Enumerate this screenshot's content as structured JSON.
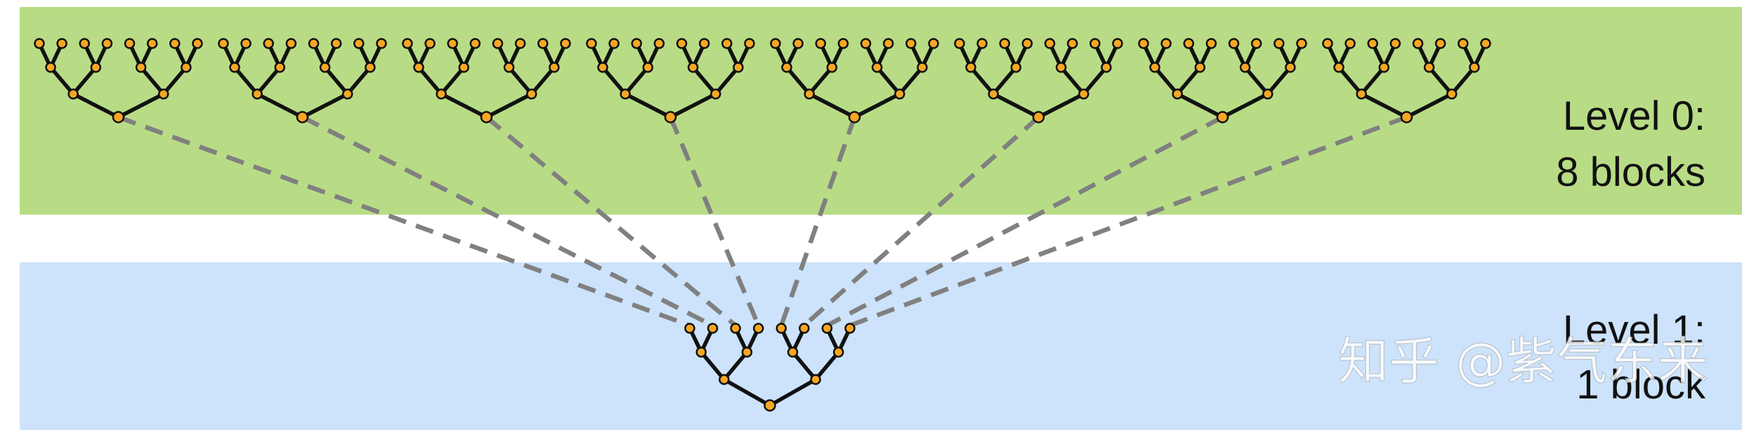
{
  "level0": {
    "label_line1": "Level 0:",
    "label_line2": "8 blocks",
    "block_count": 8,
    "background": "#b8dc86"
  },
  "level1": {
    "label_line1": "Level 1:",
    "label_line2": "1 block",
    "block_count": 1,
    "background": "#cce3fb"
  },
  "tree": {
    "leaves_per_block": 8,
    "edge_color": "#111111",
    "node_color": "#f6a623",
    "node_outline": "#111111"
  },
  "connector": {
    "style": "dashed",
    "color": "#808080"
  },
  "watermark": {
    "text": "知乎 @紫气东来"
  }
}
